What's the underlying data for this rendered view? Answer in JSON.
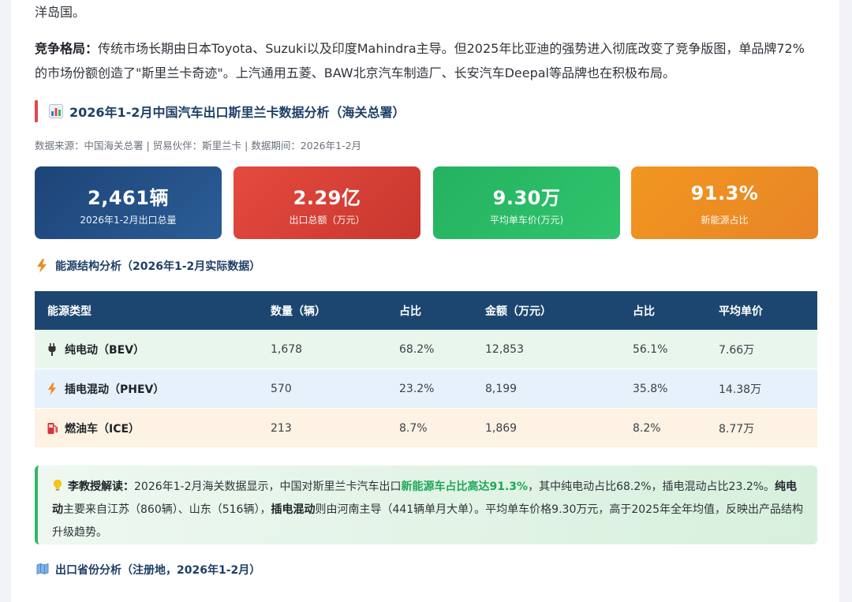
{
  "intro_tail": "洋岛国。",
  "competition": {
    "label": "竞争格局：",
    "text": "传统市场长期由日本Toyota、Suzuki以及印度Mahindra主导。但2025年比亚迪的强势进入彻底改变了竞争版图，单品牌72%的市场份额创造了\"斯里兰卡奇迹\"。上汽通用五菱、BAW北京汽车制造厂、长安汽车Deepal等品牌也在积极布局。"
  },
  "section": {
    "title": "2026年1-2月中国汽车出口斯里兰卡数据分析（海关总署）",
    "source": "数据来源：中国海关总署 | 贸易伙伴：斯里兰卡 | 数据期间：2026年1-2月"
  },
  "stats": [
    {
      "value": "2,461辆",
      "label": "2026年1-2月出口总量",
      "color": "#1d4478"
    },
    {
      "value": "2.29亿",
      "label": "出口总额（万元）",
      "color": "#e54a3f"
    },
    {
      "value": "9.30万",
      "label": "平均单车价(万元)",
      "color": "#25b260"
    },
    {
      "value": "91.3%",
      "label": "新能源占比",
      "color": "#f1961f"
    }
  ],
  "energy_section": {
    "title": "能源结构分析（2026年1-2月实际数据）",
    "icon": "lightning-icon"
  },
  "table": {
    "headers": [
      "能源类型",
      "数量（辆）",
      "占比",
      "金额（万元）",
      "占比",
      "平均单价"
    ],
    "rows": [
      {
        "icon": "plug-icon",
        "name": "纯电动（BEV）",
        "qty": "1,678",
        "qty_share": "68.2%",
        "amount": "12,853",
        "amount_share": "56.1%",
        "avg": "7.66万"
      },
      {
        "icon": "lightning-icon",
        "name": "插电混动（PHEV）",
        "qty": "570",
        "qty_share": "23.2%",
        "amount": "8,199",
        "amount_share": "35.8%",
        "avg": "14.38万"
      },
      {
        "icon": "fuel-pump-icon",
        "name": "燃油车（ICE）",
        "qty": "213",
        "qty_share": "8.7%",
        "amount": "1,869",
        "amount_share": "8.2%",
        "avg": "8.77万"
      }
    ]
  },
  "note": {
    "label": "李教授解读：",
    "t1": "2026年1-2月海关数据显示，中国对斯里兰卡汽车出口",
    "hl1": "新能源车占比高达91.3%",
    "t2": "，其中纯电动占比68.2%，插电混动占比23.2%。",
    "b1": "纯电动",
    "t3": "主要来自江苏（860辆）、山东（516辆），",
    "b2": "插电混动",
    "t4": "则由河南主导（441辆单月大单）。平均单车价格9.30万元，高于2025年全年均值，反映出产品结构升级趋势。"
  },
  "province_section": {
    "title": "出口省份分析（注册地，2026年1-2月）",
    "icon": "map-icon"
  }
}
